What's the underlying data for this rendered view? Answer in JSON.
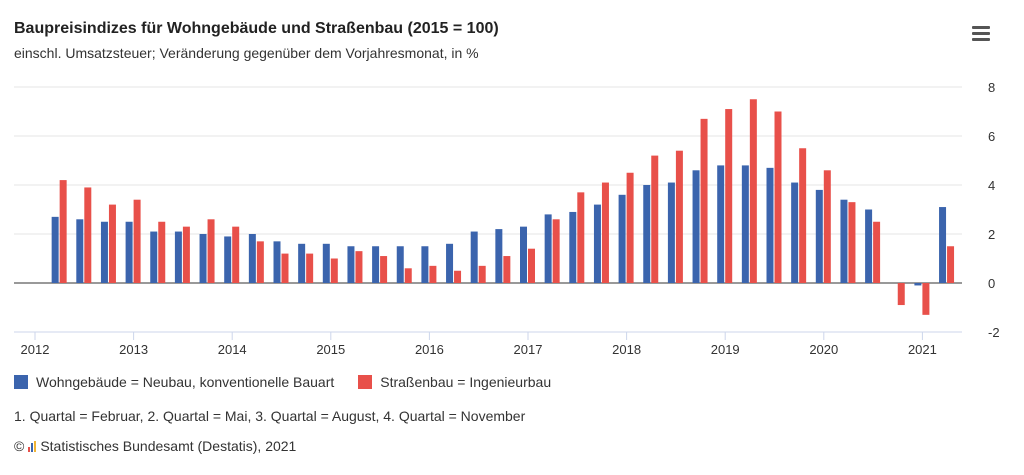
{
  "chart_data": {
    "type": "bar",
    "title": "Baupreisindizes für Wohngebäude und Straßenbau (2015 = 100)",
    "subtitle": "einschl. Umsatzsteuer; Veränderung gegenüber dem Vorjahresmonat, in %",
    "categories": [
      "2012 Q2",
      "2012 Q3",
      "2012 Q4",
      "2013 Q1",
      "2013 Q2",
      "2013 Q3",
      "2013 Q4",
      "2014 Q1",
      "2014 Q2",
      "2014 Q3",
      "2014 Q4",
      "2015 Q1",
      "2015 Q2",
      "2015 Q3",
      "2015 Q4",
      "2016 Q1",
      "2016 Q2",
      "2016 Q3",
      "2016 Q4",
      "2017 Q1",
      "2017 Q2",
      "2017 Q3",
      "2017 Q4",
      "2018 Q1",
      "2018 Q2",
      "2018 Q3",
      "2018 Q4",
      "2019 Q1",
      "2019 Q2",
      "2019 Q3",
      "2019 Q4",
      "2020 Q1",
      "2020 Q2",
      "2020 Q3",
      "2020 Q4",
      "2021 Q1",
      "2021 Q2"
    ],
    "series": [
      {
        "name": "Wohngebäude = Neubau, konventionelle Bauart",
        "color": "#3b64ad",
        "values": [
          2.7,
          2.6,
          2.5,
          2.5,
          2.1,
          2.1,
          2.0,
          1.9,
          2.0,
          1.7,
          1.6,
          1.6,
          1.5,
          1.5,
          1.5,
          1.5,
          1.6,
          2.1,
          2.2,
          2.3,
          2.8,
          2.9,
          3.2,
          3.6,
          4.0,
          4.1,
          4.6,
          4.8,
          4.8,
          4.7,
          4.1,
          3.8,
          3.4,
          3.0,
          null,
          -0.1,
          3.1
        ]
      },
      {
        "name": "Straßenbau = Ingenieurbau",
        "color": "#e8504a",
        "values": [
          4.2,
          3.9,
          3.2,
          3.4,
          2.5,
          2.3,
          2.6,
          2.3,
          1.7,
          1.2,
          1.2,
          1.0,
          1.3,
          1.1,
          0.6,
          0.7,
          0.5,
          0.7,
          1.1,
          1.4,
          2.6,
          3.7,
          4.1,
          4.5,
          5.2,
          5.4,
          6.7,
          7.1,
          7.5,
          7.0,
          5.5,
          4.6,
          3.3,
          2.5,
          -0.9,
          -1.3,
          1.5
        ]
      }
    ],
    "x_ticks": [
      "2012",
      "2013",
      "2014",
      "2015",
      "2016",
      "2017",
      "2018",
      "2019",
      "2020",
      "2021"
    ],
    "y_ticks": [
      "8",
      "6",
      "4",
      "2",
      "0",
      "-2"
    ],
    "ylim": [
      -2,
      8
    ],
    "grid": true,
    "legend_position": "bottom-left"
  },
  "note": "1. Quartal = Februar, 2. Quartal = Mai, 3. Quartal = August, 4. Quartal = November",
  "credit": "© ",
  "credit_text": "Statistisches Bundesamt (Destatis), 2021",
  "icons": {
    "menu": "hamburger-menu-icon",
    "logo": "destatis-logo-icon"
  }
}
